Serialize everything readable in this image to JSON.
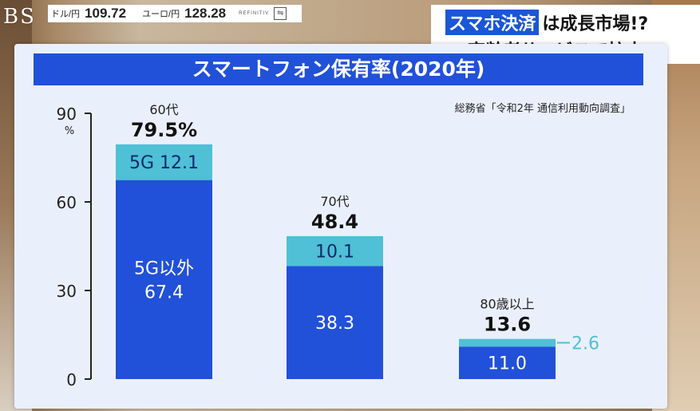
{
  "overlay": {
    "logo": "BS",
    "ticker": [
      {
        "label": "ドル/円",
        "value": "109.72"
      },
      {
        "label": "ユーロ/円",
        "value": "128.28"
      }
    ],
    "ticker_source": "REFINITIV",
    "headline": {
      "highlight": "スマホ決済",
      "line1_rest": "は成長市場!?",
      "line2": "高齢者サービスで拡大"
    }
  },
  "source_note": "総務省「令和2年 通信利用動向調査」",
  "colors": {
    "title_bar": "#2151d8",
    "bar_dark": "#2151d8",
    "bar_light": "#4fc0d6"
  },
  "chart_data": {
    "type": "bar",
    "stacked": true,
    "title": "スマートフォン保有率(2020年)",
    "ylabel": "%",
    "yticks": [
      0,
      30,
      60,
      90
    ],
    "ylim": [
      0,
      90
    ],
    "categories": [
      "60代",
      "70代",
      "80歳以上"
    ],
    "totals": [
      "79.5%",
      "48.4",
      "13.6"
    ],
    "series": [
      {
        "name": "5G以外",
        "values": [
          67.4,
          38.3,
          11.0
        ],
        "color": "#2151d8"
      },
      {
        "name": "5G",
        "values": [
          12.1,
          10.1,
          2.6
        ],
        "color": "#4fc0d6"
      }
    ],
    "bar_labels": {
      "bottom": [
        "5G以外\n67.4",
        "38.3",
        "11.0"
      ],
      "top": [
        "5G 12.1",
        "10.1",
        "2.6"
      ]
    }
  }
}
